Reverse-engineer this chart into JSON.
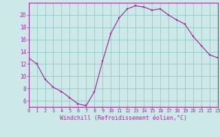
{
  "hours": [
    0,
    1,
    2,
    3,
    4,
    5,
    6,
    7,
    8,
    9,
    10,
    11,
    12,
    13,
    14,
    15,
    16,
    17,
    18,
    19,
    20,
    21,
    22,
    23
  ],
  "values": [
    13,
    12,
    9.5,
    8.2,
    7.5,
    6.5,
    5.5,
    5.2,
    7.5,
    12.5,
    17,
    19.5,
    21,
    21.5,
    21.3,
    20.8,
    21,
    20,
    19.2,
    18.5,
    16.5,
    15,
    13.5,
    13
  ],
  "line_color": "#993399",
  "marker_color": "#993399",
  "bg_color": "#cce8e8",
  "grid_color": "#99cccc",
  "xlabel": "Windchill (Refroidissement éolien,°C)",
  "xlabel_color": "#993399",
  "tick_color": "#993399",
  "spine_color": "#993399",
  "ylim": [
    5,
    22
  ],
  "yticks": [
    6,
    8,
    10,
    12,
    14,
    16,
    18,
    20
  ],
  "xlim": [
    0,
    23
  ],
  "xticks": [
    0,
    1,
    2,
    3,
    4,
    5,
    6,
    7,
    8,
    9,
    10,
    11,
    12,
    13,
    14,
    15,
    16,
    17,
    18,
    19,
    20,
    21,
    22,
    23
  ]
}
